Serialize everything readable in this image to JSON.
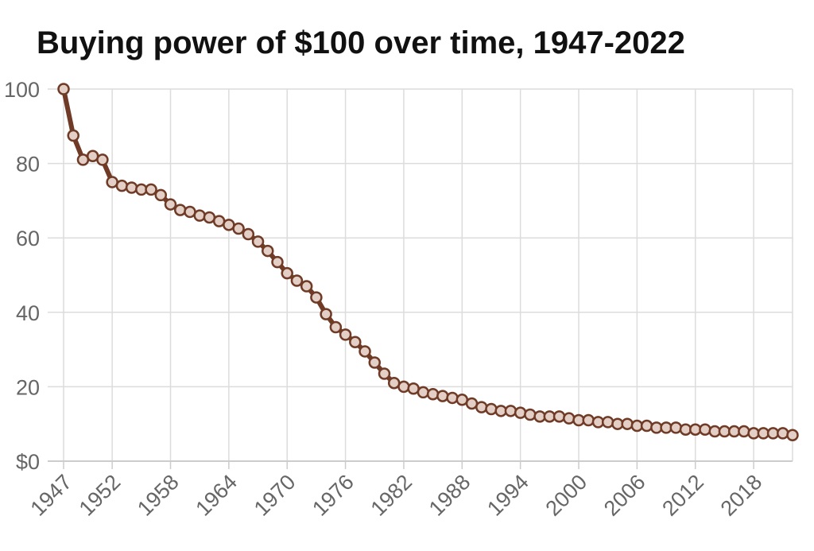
{
  "chart_data": {
    "type": "line",
    "title": "Buying power of $100 over time, 1947-2022",
    "xlabel": "",
    "ylabel": "",
    "x": [
      1947,
      1948,
      1949,
      1950,
      1951,
      1952,
      1953,
      1954,
      1955,
      1956,
      1957,
      1958,
      1959,
      1960,
      1961,
      1962,
      1963,
      1964,
      1965,
      1966,
      1967,
      1968,
      1969,
      1970,
      1971,
      1972,
      1973,
      1974,
      1975,
      1976,
      1977,
      1978,
      1979,
      1980,
      1981,
      1982,
      1983,
      1984,
      1985,
      1986,
      1987,
      1988,
      1989,
      1990,
      1991,
      1992,
      1993,
      1994,
      1995,
      1996,
      1997,
      1998,
      1999,
      2000,
      2001,
      2002,
      2003,
      2004,
      2005,
      2006,
      2007,
      2008,
      2009,
      2010,
      2011,
      2012,
      2013,
      2014,
      2015,
      2016,
      2017,
      2018,
      2019,
      2020,
      2021,
      2022
    ],
    "values": [
      100,
      87.5,
      81,
      82,
      81,
      75,
      74,
      73.5,
      73,
      73,
      71.5,
      69,
      67.5,
      67,
      66,
      65.5,
      64.5,
      63.5,
      62.5,
      61,
      59,
      56.5,
      53.5,
      50.5,
      48.5,
      47,
      44,
      39.5,
      36,
      34,
      32,
      29.5,
      26.5,
      23.5,
      21,
      20,
      19.5,
      18.5,
      18,
      17.5,
      17,
      16.5,
      15.5,
      14.5,
      14,
      13.5,
      13.5,
      13,
      12.5,
      12,
      12,
      12,
      11.5,
      11,
      11,
      10.5,
      10.5,
      10,
      10,
      9.5,
      9.5,
      9,
      9,
      9,
      8.5,
      8.5,
      8.5,
      8,
      8,
      8,
      8,
      7.5,
      7.5,
      7.5,
      7.5,
      7
    ],
    "xticks": [
      "1947",
      "1952",
      "1958",
      "1964",
      "1970",
      "1976",
      "1982",
      "1988",
      "1994",
      "2000",
      "2006",
      "2012",
      "2018"
    ],
    "yticks": [
      {
        "value": 0,
        "label": "$0"
      },
      {
        "value": 20,
        "label": "20"
      },
      {
        "value": 40,
        "label": "40"
      },
      {
        "value": 60,
        "label": "60"
      },
      {
        "value": 80,
        "label": "80"
      },
      {
        "value": 100,
        "label": "100"
      }
    ],
    "xlim": [
      1947,
      2022
    ],
    "ylim": [
      0,
      100
    ],
    "grid": true,
    "legend": "none",
    "colors": {
      "line": "#6f3b27",
      "marker_fill": "#e3cfc6",
      "grid": "#dcdcdc",
      "axis": "#cccccc",
      "tick_text": "#666666"
    }
  }
}
